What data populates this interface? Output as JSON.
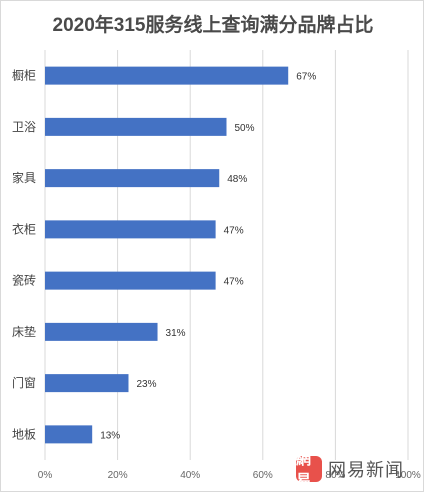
{
  "chart_data": {
    "type": "bar",
    "orientation": "horizontal",
    "title": "2020年315服务线上查询满分品牌占比",
    "categories": [
      "橱柜",
      "卫浴",
      "家具",
      "衣柜",
      "瓷砖",
      "床垫",
      "门窗",
      "地板"
    ],
    "values": [
      67,
      50,
      48,
      47,
      47,
      31,
      23,
      13
    ],
    "value_labels": [
      "67%",
      "50%",
      "48%",
      "47%",
      "47%",
      "31%",
      "23%",
      "13%"
    ],
    "xlim": [
      0,
      100
    ],
    "x_ticks": [
      "0%",
      "20%",
      "40%",
      "60%",
      "80%",
      "100%"
    ],
    "grid": true,
    "bar_color": "#4472C4",
    "grid_color": "#d9d9d9"
  },
  "watermark": {
    "logo_text": "網易",
    "text": "网易新闻"
  }
}
